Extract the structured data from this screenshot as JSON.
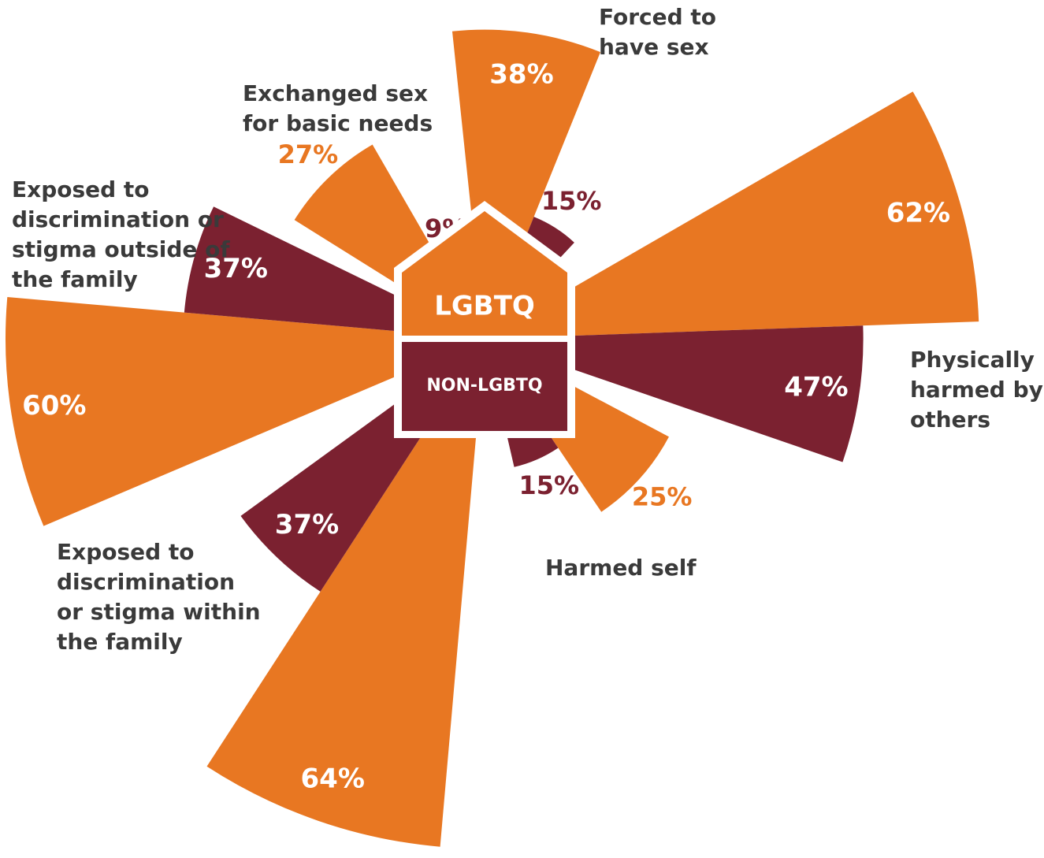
{
  "chart_data": {
    "type": "polar-bar",
    "categories": [
      "Forced to\nhave sex",
      "Physically\nharmed by\nothers",
      "Harmed self",
      "Exposed to\ndiscrimination\nor stigma within\nthe family",
      "Exposed to\ndiscrimination or\nstigma outside of\nthe family",
      "Exchanged sex\nfor basic needs"
    ],
    "series": [
      {
        "name": "LGBTQ",
        "color": "#e87722",
        "values": [
          38,
          62,
          25,
          64,
          60,
          27
        ],
        "value_labels": [
          "38%",
          "62%",
          "25%",
          "64%",
          "60%",
          "27%"
        ]
      },
      {
        "name": "NON-LGBTQ",
        "color": "#7b2130",
        "values": [
          15,
          47,
          15,
          37,
          37,
          9
        ],
        "value_labels": [
          "15%",
          "47%",
          "15%",
          "37%",
          "37%",
          "9%"
        ]
      }
    ]
  }
}
